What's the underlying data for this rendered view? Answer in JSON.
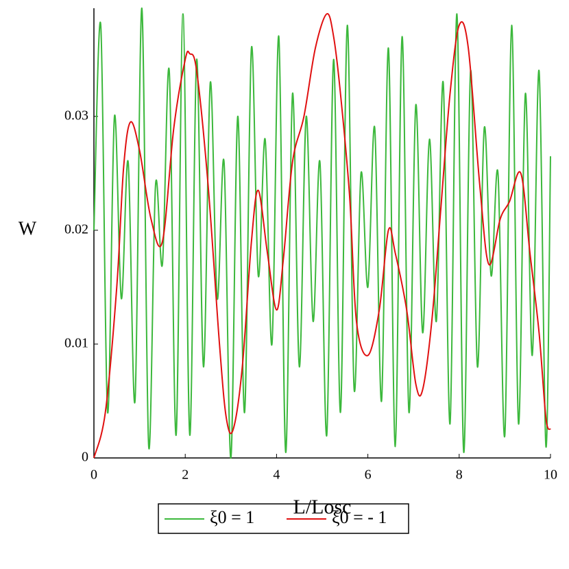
{
  "chart_data": {
    "type": "line",
    "xlabel": "L/Losc",
    "ylabel": "W",
    "xlim": [
      0,
      10
    ],
    "xticks": [
      0,
      2,
      4,
      6,
      8,
      10
    ],
    "ylim": [
      0,
      0.0395
    ],
    "yticks": [
      0,
      0.01,
      0.02,
      0.03
    ],
    "legend": "bottom",
    "series": [
      {
        "name": "ξ0 = 1",
        "color": "#3cb83c",
        "x": [
          0,
          0.15,
          0.3,
          0.45,
          0.6,
          0.75,
          0.9,
          1.05,
          1.2,
          1.35,
          1.5,
          1.65,
          1.8,
          1.95,
          2.1,
          2.25,
          2.4,
          2.55,
          2.7,
          2.85,
          3,
          3.15,
          3.3,
          3.45,
          3.6,
          3.75,
          3.9,
          4.05,
          4.2,
          4.35,
          4.5,
          4.65,
          4.8,
          4.95,
          5.1,
          5.25,
          5.4,
          5.55,
          5.7,
          5.85,
          6,
          6.15,
          6.3,
          6.45,
          6.6,
          6.75,
          6.9,
          7.05,
          7.2,
          7.35,
          7.5,
          7.65,
          7.8,
          7.95,
          8.1,
          8.25,
          8.4,
          8.55,
          8.7,
          8.85,
          9,
          9.15,
          9.3,
          9.45,
          9.6,
          9.75,
          9.9,
          10
        ],
        "values": [
          0.02,
          0.038,
          0.004,
          0.03,
          0.014,
          0.026,
          0.005,
          0.0395,
          0.001,
          0.024,
          0.017,
          0.034,
          0.002,
          0.039,
          0.002,
          0.035,
          0.008,
          0.033,
          0.014,
          0.026,
          0,
          0.03,
          0.004,
          0.036,
          0.016,
          0.028,
          0.01,
          0.037,
          0.0005,
          0.032,
          0.008,
          0.03,
          0.012,
          0.026,
          0.002,
          0.035,
          0.004,
          0.038,
          0.006,
          0.025,
          0.015,
          0.029,
          0.005,
          0.036,
          0.001,
          0.037,
          0.004,
          0.031,
          0.011,
          0.028,
          0.012,
          0.033,
          0.003,
          0.039,
          0.0005,
          0.034,
          0.008,
          0.029,
          0.016,
          0.025,
          0.002,
          0.038,
          0.003,
          0.032,
          0.009,
          0.034,
          0.001,
          0.0265
        ]
      },
      {
        "name": "ξ0 = - 1",
        "color": "#e01010",
        "x": [
          0,
          0.25,
          0.5,
          0.65,
          0.8,
          1,
          1.25,
          1.5,
          1.75,
          2,
          2.1,
          2.25,
          2.5,
          2.75,
          2.9,
          3.05,
          3.25,
          3.45,
          3.6,
          3.8,
          4,
          4.15,
          4.35,
          4.6,
          4.85,
          5.1,
          5.25,
          5.4,
          5.6,
          5.75,
          6,
          6.25,
          6.45,
          6.6,
          6.85,
          7.05,
          7.2,
          7.4,
          7.6,
          7.8,
          8,
          8.2,
          8.45,
          8.65,
          8.9,
          9.1,
          9.35,
          9.55,
          9.75,
          9.9,
          10
        ],
        "values": [
          0,
          0.004,
          0.015,
          0.0255,
          0.0295,
          0.027,
          0.021,
          0.019,
          0.029,
          0.035,
          0.0355,
          0.034,
          0.024,
          0.01,
          0.0035,
          0.0025,
          0.008,
          0.019,
          0.0235,
          0.018,
          0.013,
          0.0175,
          0.026,
          0.03,
          0.036,
          0.039,
          0.037,
          0.032,
          0.023,
          0.012,
          0.009,
          0.013,
          0.02,
          0.018,
          0.013,
          0.0065,
          0.006,
          0.012,
          0.022,
          0.032,
          0.038,
          0.036,
          0.024,
          0.017,
          0.021,
          0.0225,
          0.025,
          0.018,
          0.011,
          0.0035,
          0.0025
        ]
      }
    ]
  }
}
